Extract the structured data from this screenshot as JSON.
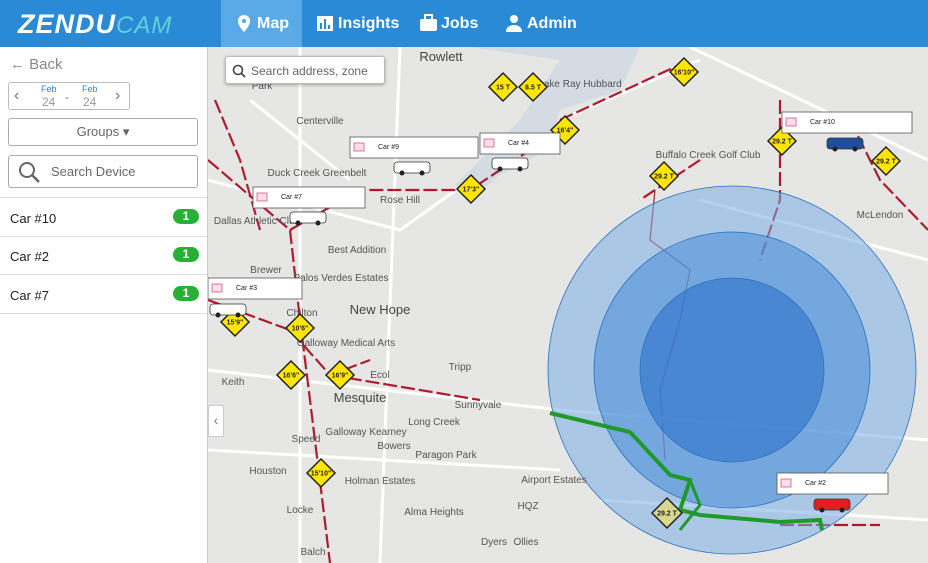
{
  "header": {
    "logo": {
      "part1": "ZENDU",
      "part2": "CAM"
    },
    "nav": [
      "Map",
      "Insights",
      "Jobs",
      "Admin"
    ]
  },
  "sidebar": {
    "back": "Back",
    "date_from": {
      "month": "Feb",
      "day": "24"
    },
    "separator": "-",
    "date_to": {
      "month": "Feb",
      "day": "24"
    },
    "groups": "Groups",
    "search": "Search Device",
    "devices": [
      {
        "name": "Car #10",
        "count": "1"
      },
      {
        "name": "Car #2",
        "count": "1"
      },
      {
        "name": "Car #7",
        "count": "1"
      }
    ]
  },
  "map": {
    "search": "Search address, zone",
    "places": [
      "Rowlett",
      "Centerville",
      "Duck Creek Greenbelt",
      "Rose Hill",
      "Dallas Athletic Club",
      "Best Addition",
      "Palos Verdes Estates",
      "Brewer",
      "Chilton",
      "New Hope",
      "Galloway Medical Arts",
      "Ecol",
      "Tripp",
      "Keith",
      "Mesquite",
      "Sunnyvale",
      "Galloway Kearney",
      "Long Creek",
      "Speed",
      "Bowers",
      "Paragon Park",
      "Holman Estates",
      "Houston",
      "Airport Estates",
      "Locke",
      "Alma Heights",
      "HQZ",
      "Dyers",
      "Ollies",
      "Balch",
      "Buffalo Creek Golf Club",
      "McLendon",
      "Lake Ray Hubbard",
      "Park"
    ],
    "vehicles": [
      "Car #9",
      "Car #4",
      "Car #7",
      "Car #3",
      "Car #10",
      "Car #2"
    ],
    "signs": [
      "15 T",
      "8.5 T",
      "16'10\"",
      "16'4\"",
      "29.2 T",
      "29.2 T",
      "29.2 T",
      "17'3\"",
      "15'9\"",
      "10'6\"",
      "16'6\"",
      "16'9\"",
      "15'10\"",
      "29.2 T"
    ]
  }
}
